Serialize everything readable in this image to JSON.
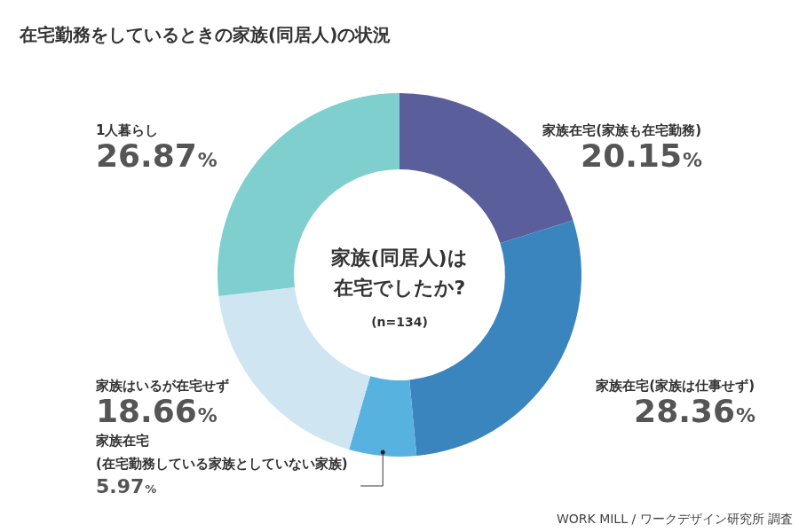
{
  "chart_data": {
    "type": "doughnut",
    "title": "在宅勤務をしているときの家族(同居人)の状況",
    "center_text": [
      "家族(同居人)は",
      "在宅でしたか?"
    ],
    "note": "(n=134)",
    "source": "WORK MILL / ワークデザイン研究所 調査",
    "categories": [
      "家族在宅(家族も在宅勤務)",
      "家族在宅(家族は仕事せず)",
      "家族在宅(在宅勤務している家族としていない家族)",
      "家族はいるが在宅せず",
      "1人暮らし"
    ],
    "values": [
      20.15,
      28.36,
      5.97,
      18.66,
      26.87
    ],
    "value_labels": [
      "20.15%",
      "28.36%",
      "5.97%",
      "18.66%",
      "26.87%"
    ],
    "colors": [
      "#5a5f9c",
      "#3a85be",
      "#58b2df",
      "#cfe6f2",
      "#7fcfcf"
    ],
    "data_labels": true,
    "legend": false
  }
}
